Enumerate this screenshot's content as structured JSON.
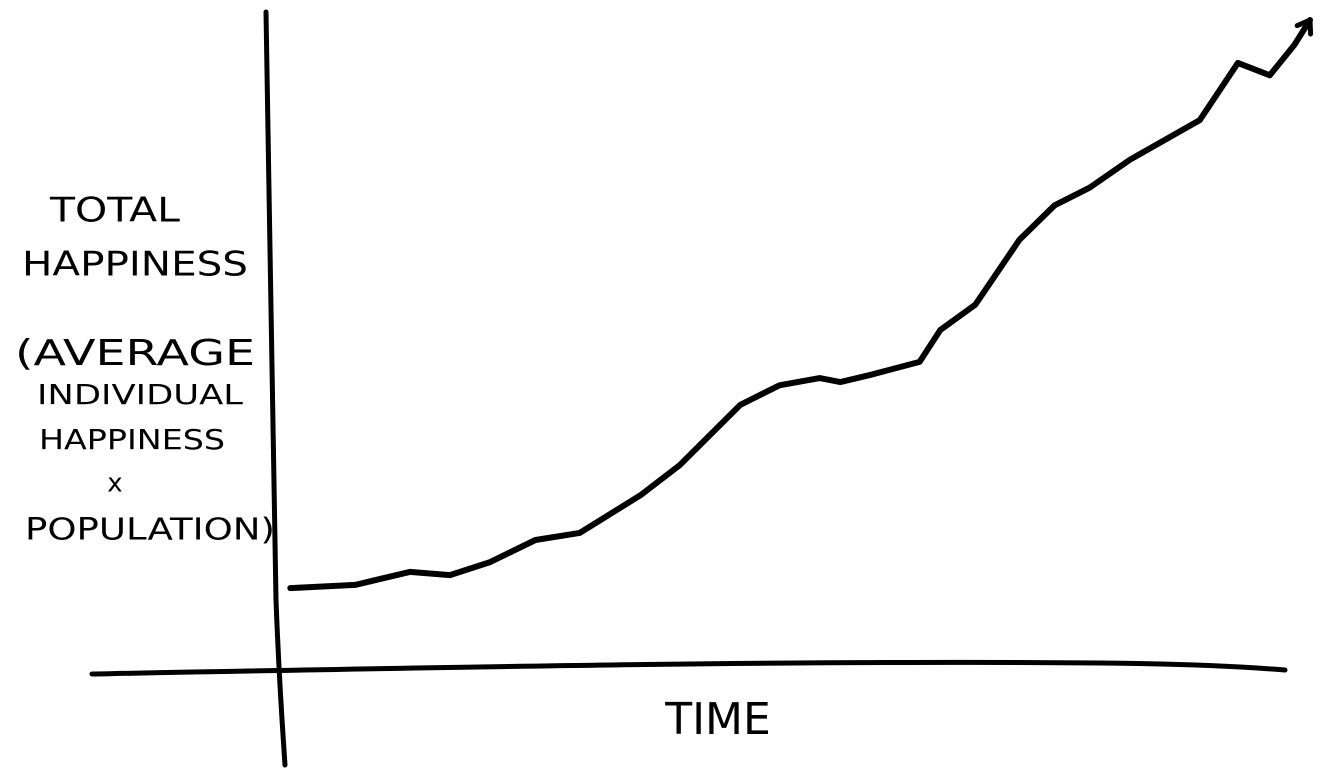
{
  "chart_data": {
    "type": "line",
    "xlabel": "TIME",
    "ylabel": [
      "TOTAL",
      "HAPPINESS",
      "(AVERAGE",
      "INDIVIDUAL",
      "HAPPINESS",
      "x",
      "POPULATION)"
    ],
    "x": [
      1,
      7.3,
      12.6,
      16.5,
      20.4,
      24.8,
      29.1,
      35,
      38.8,
      44.7,
      48.5,
      52.4,
      54.4,
      57.3,
      62.1,
      64.1,
      67.5,
      71.8,
      75.2,
      78.6,
      82.5,
      89.3,
      93,
      96.1,
      98.5,
      100
    ],
    "values": [
      12.6,
      13.1,
      15.1,
      14.6,
      16.6,
      20,
      21.1,
      26.9,
      31.5,
      40.8,
      43.8,
      44.9,
      44.3,
      45.4,
      47.4,
      52.3,
      56.2,
      66.2,
      71.5,
      74.2,
      78.5,
      84.6,
      93.4,
      91.5,
      96.2,
      100
    ],
    "color": "#000000",
    "xlim": [
      0,
      100
    ],
    "ylim": [
      0,
      100
    ]
  }
}
